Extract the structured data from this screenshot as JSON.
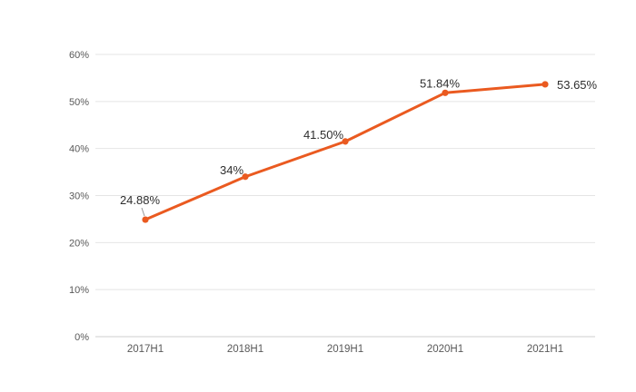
{
  "chart_data": {
    "type": "line",
    "title": "",
    "xlabel": "",
    "ylabel": "",
    "categories": [
      "2017H1",
      "2018H1",
      "2019H1",
      "2020H1",
      "2021H1"
    ],
    "values": [
      24.88,
      34,
      41.5,
      51.84,
      53.65
    ],
    "point_labels": [
      "24.88%",
      "34%",
      "41.50%",
      "51.84%",
      "53.65%"
    ],
    "ylim": [
      0,
      60
    ],
    "ytick_step": 10,
    "ytick_labels": [
      "0%",
      "10%",
      "20%",
      "30%",
      "40%",
      "50%",
      "60%"
    ],
    "grid": "horizontal-only",
    "legend": "none",
    "colors": {
      "line": "#ea5a20",
      "marker": "#ea5a20",
      "data_label": "#2e2e2e",
      "axis_text": "#595959",
      "gridline": "#e4e4e4",
      "axis_line": "#cfcfcf",
      "leader_line": "#999999",
      "background": "#ffffff"
    }
  }
}
